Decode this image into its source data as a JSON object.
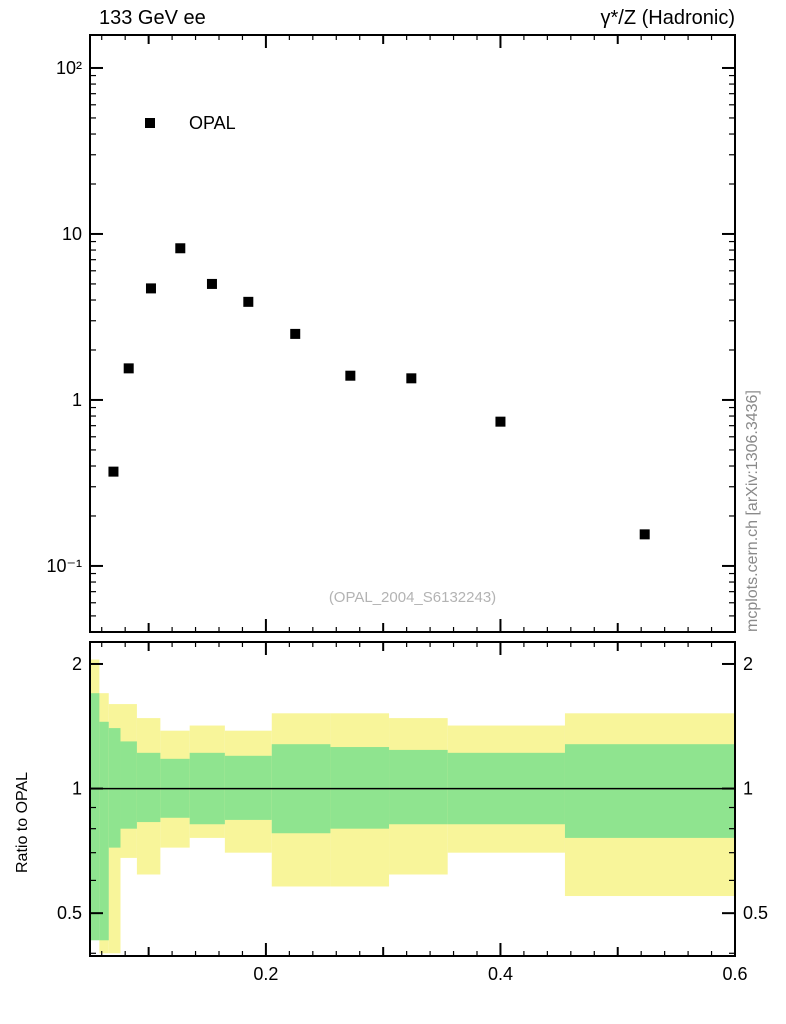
{
  "attribution": "mcplots.cern.ch [arXiv:1306.3436]",
  "colors": {
    "band_outer": "#f8f59a",
    "band_inner": "#8fe48f",
    "marker": "#000000",
    "frame": "#000000",
    "watermark_text": "#b3b3b3",
    "attribution_text": "#8a8a8a"
  },
  "chart_data": [
    {
      "type": "scatter",
      "title": "133 GeV ee",
      "right_title": "γ*/Z (Hadronic)",
      "watermark": "(OPAL_2004_S6132243)",
      "xlabel": "",
      "ylabel": "",
      "xlim": [
        0.05,
        0.6
      ],
      "ylim": [
        0.04,
        158
      ],
      "yscale": "log",
      "legend_position": "top-left-inside",
      "series": [
        {
          "name": "OPAL",
          "marker": "filled-square",
          "color": "#000000",
          "x": [
            0.07,
            0.083,
            0.102,
            0.127,
            0.154,
            0.185,
            0.225,
            0.272,
            0.324,
            0.4,
            0.523
          ],
          "y": [
            0.37,
            1.55,
            4.7,
            8.2,
            5.0,
            3.9,
            2.5,
            1.4,
            1.35,
            0.74,
            0.155
          ]
        }
      ],
      "y_ticks": [
        {
          "v": 100,
          "label": "10²"
        },
        {
          "v": 10,
          "label": "10"
        },
        {
          "v": 1,
          "label": "1"
        },
        {
          "v": 0.1,
          "label": "10⁻¹"
        }
      ],
      "x_ticks": {
        "labeled": [
          {
            "v": 0.2,
            "label": "0.2"
          },
          {
            "v": 0.4,
            "label": "0.4"
          },
          {
            "v": 0.6,
            "label": "0.6"
          }
        ],
        "medium_step": 0.1,
        "minor_step": 0.02
      }
    },
    {
      "type": "area",
      "ylabel": "Ratio to OPAL",
      "xlim": [
        0.05,
        0.6
      ],
      "ylim": [
        0.394,
        2.26
      ],
      "yscale": "log",
      "reference_line": 1,
      "y_ticks": [
        {
          "v": 2,
          "label": "2"
        },
        {
          "v": 1,
          "label": "1"
        },
        {
          "v": 0.5,
          "label": "0.5"
        }
      ],
      "y_minor": [
        0.4,
        0.6,
        0.7,
        0.8,
        0.9
      ],
      "bands": [
        {
          "x0": 0.05,
          "x1": 0.058,
          "outer": [
            0.55,
            2.05
          ],
          "inner": [
            0.43,
            1.7
          ]
        },
        {
          "x0": 0.058,
          "x1": 0.066,
          "outer": [
            0.4,
            1.7
          ],
          "inner": [
            0.43,
            1.45
          ]
        },
        {
          "x0": 0.066,
          "x1": 0.076,
          "outer": [
            0.4,
            1.6
          ],
          "inner": [
            0.72,
            1.4
          ]
        },
        {
          "x0": 0.076,
          "x1": 0.09,
          "outer": [
            0.68,
            1.6
          ],
          "inner": [
            0.8,
            1.3
          ]
        },
        {
          "x0": 0.09,
          "x1": 0.11,
          "outer": [
            0.62,
            1.48
          ],
          "inner": [
            0.83,
            1.22
          ]
        },
        {
          "x0": 0.11,
          "x1": 0.135,
          "outer": [
            0.72,
            1.38
          ],
          "inner": [
            0.85,
            1.18
          ]
        },
        {
          "x0": 0.135,
          "x1": 0.165,
          "outer": [
            0.76,
            1.42
          ],
          "inner": [
            0.82,
            1.22
          ]
        },
        {
          "x0": 0.165,
          "x1": 0.205,
          "outer": [
            0.7,
            1.38
          ],
          "inner": [
            0.84,
            1.2
          ]
        },
        {
          "x0": 0.205,
          "x1": 0.255,
          "outer": [
            0.58,
            1.52
          ],
          "inner": [
            0.78,
            1.28
          ]
        },
        {
          "x0": 0.255,
          "x1": 0.305,
          "outer": [
            0.58,
            1.52
          ],
          "inner": [
            0.8,
            1.26
          ]
        },
        {
          "x0": 0.305,
          "x1": 0.355,
          "outer": [
            0.62,
            1.48
          ],
          "inner": [
            0.82,
            1.24
          ]
        },
        {
          "x0": 0.355,
          "x1": 0.455,
          "outer": [
            0.7,
            1.42
          ],
          "inner": [
            0.82,
            1.22
          ]
        },
        {
          "x0": 0.455,
          "x1": 0.6,
          "outer": [
            0.55,
            1.52
          ],
          "inner": [
            0.76,
            1.28
          ]
        }
      ]
    }
  ]
}
